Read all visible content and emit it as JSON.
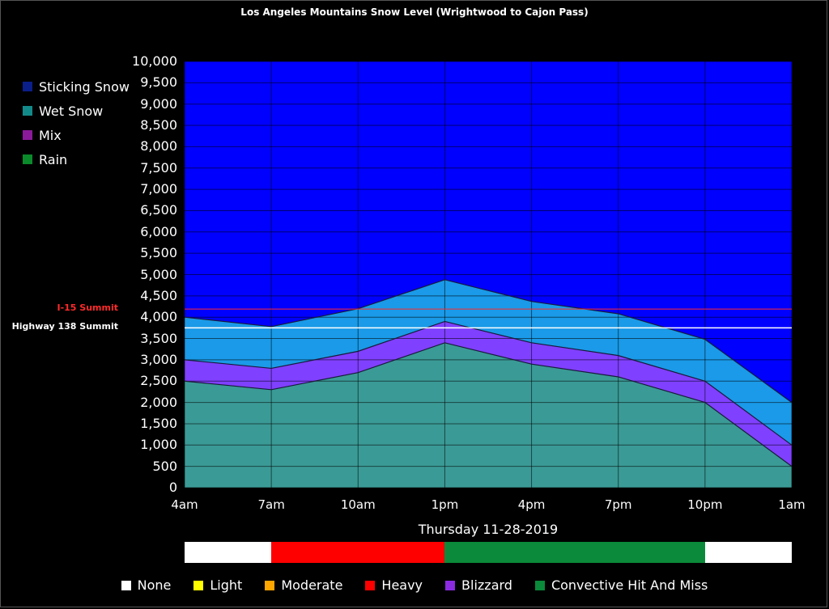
{
  "title": "Los Angeles Mountains Snow Level (Wrightwood to Cajon Pass)",
  "legend": [
    {
      "label": "Sticking Snow",
      "color": "#0a1f8a"
    },
    {
      "label": "Wet Snow",
      "color": "#138a8a"
    },
    {
      "label": "Mix",
      "color": "#8a1a9a"
    },
    {
      "label": "Rain",
      "color": "#0a8a2a"
    }
  ],
  "reference_lines": [
    {
      "label": "I-15 Summit",
      "value": 4190,
      "color": "#ff2a2a"
    },
    {
      "label": "Highway 138 Summit",
      "value": 3750,
      "color": "#ffffff"
    }
  ],
  "date_label": "Thursday 11-28-2019",
  "intensity": {
    "segments": [
      "None",
      "Heavy",
      "Heavy",
      "Convective Hit And Miss",
      "Convective Hit And Miss",
      "Convective Hit And Miss",
      "None"
    ],
    "legend": [
      {
        "label": "None",
        "color": "#ffffff"
      },
      {
        "label": "Light",
        "color": "#ffff00"
      },
      {
        "label": "Moderate",
        "color": "#ffa500"
      },
      {
        "label": "Heavy",
        "color": "#ff0000"
      },
      {
        "label": "Blizzard",
        "color": "#8a2be2"
      },
      {
        "label": "Convective Hit And Miss",
        "color": "#0a8a3a"
      }
    ]
  },
  "chart_data": {
    "type": "area",
    "categories": [
      "4am",
      "7am",
      "10am",
      "1pm",
      "4pm",
      "7pm",
      "10pm",
      "1am"
    ],
    "y_ticks": [
      "0",
      "500",
      "1,000",
      "1,500",
      "2,000",
      "2,500",
      "3,000",
      "3,500",
      "4,000",
      "4,500",
      "5,000",
      "5,500",
      "6,000",
      "6,500",
      "7,000",
      "7,500",
      "8,000",
      "8,500",
      "9,000",
      "9,500",
      "10,000"
    ],
    "ylim": [
      0,
      10000
    ],
    "grid": true,
    "series": [
      {
        "name": "Sticking Snow",
        "color": "#0000ff",
        "values": [
          10000,
          10000,
          10000,
          10000,
          10000,
          10000,
          10000,
          10000
        ]
      },
      {
        "name": "Wet Snow",
        "color": "#1a9ae8",
        "values": [
          4000,
          3780,
          4200,
          4880,
          4370,
          4080,
          3480,
          2000
        ]
      },
      {
        "name": "Mix",
        "color": "#8040ff",
        "values": [
          3000,
          2800,
          3200,
          3900,
          3400,
          3100,
          2500,
          1000
        ]
      },
      {
        "name": "Rain",
        "color": "#3a9a96",
        "values": [
          2500,
          2300,
          2700,
          3400,
          2900,
          2600,
          2000,
          500
        ]
      }
    ]
  }
}
